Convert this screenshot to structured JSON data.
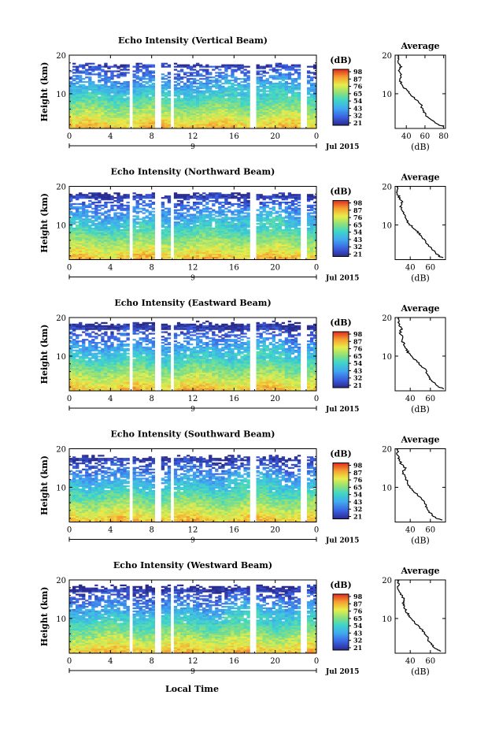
{
  "figure": {
    "xlabel_bottom": "Local Time"
  },
  "chart_data": [
    {
      "type": "heatmap",
      "title": "Echo Intensity (Vertical Beam)",
      "ylabel": "Height (km)",
      "x_ticks": [
        "0",
        "4",
        "8",
        "12",
        "16",
        "20",
        "0"
      ],
      "y_ticks": [
        "10",
        "20"
      ],
      "xlim": [
        0,
        24
      ],
      "ylim": [
        1,
        20
      ],
      "date_tick": "9",
      "date_label": "Jul 2015",
      "colorbar": {
        "unit": "(dB)",
        "ticks": [
          "98",
          "87",
          "76",
          "65",
          "54",
          "43",
          "32",
          "21"
        ]
      },
      "gaps_hours": [
        [
          5.9,
          6.3
        ],
        [
          8.4,
          9.0
        ],
        [
          9.9,
          10.3
        ],
        [
          17.6,
          18.1
        ],
        [
          22.6,
          23.0
        ]
      ],
      "signal_top_km": 17.5,
      "profile": {
        "title": "Average",
        "xlabel": "(dB)",
        "x_ticks": [
          "40",
          "60",
          "80"
        ],
        "xlim": [
          28,
          82
        ],
        "y_ticks": [
          "10",
          "20"
        ],
        "height_km": [
          1.5,
          2,
          3,
          4,
          5,
          6,
          7,
          8,
          9,
          10,
          11,
          12,
          13,
          14,
          15,
          16,
          17,
          18,
          19,
          20
        ],
        "intensity_db": [
          80,
          74,
          68,
          62,
          60,
          57,
          56,
          52,
          48,
          44,
          40,
          36,
          34,
          33,
          35,
          32,
          34,
          31,
          31,
          32
        ]
      }
    },
    {
      "type": "heatmap",
      "title": "Echo Intensity (Northward Beam)",
      "ylabel": "Height (km)",
      "x_ticks": [
        "0",
        "4",
        "8",
        "12",
        "16",
        "20",
        "0"
      ],
      "y_ticks": [
        "10",
        "20"
      ],
      "xlim": [
        0,
        24
      ],
      "ylim": [
        1,
        20
      ],
      "date_tick": "9",
      "date_label": "Jul 2015",
      "colorbar": {
        "unit": "(dB)",
        "ticks": [
          "98",
          "87",
          "76",
          "65",
          "54",
          "43",
          "32",
          "21"
        ]
      },
      "gaps_hours": [
        [
          5.9,
          6.3
        ],
        [
          8.4,
          9.0
        ],
        [
          9.9,
          10.3
        ],
        [
          17.6,
          18.1
        ],
        [
          22.6,
          23.0
        ]
      ],
      "signal_top_km": 18.0,
      "profile": {
        "title": "Average",
        "xlabel": "(dB)",
        "x_ticks": [
          "40",
          "60"
        ],
        "xlim": [
          25,
          75
        ],
        "y_ticks": [
          "10",
          "20"
        ],
        "height_km": [
          1.5,
          2,
          3,
          4,
          5,
          6,
          7,
          8,
          9,
          10,
          11,
          12,
          13,
          14,
          15,
          16,
          17,
          18,
          19,
          20
        ],
        "intensity_db": [
          72,
          68,
          64,
          60,
          57,
          54,
          52,
          48,
          44,
          40,
          37,
          35,
          33,
          31,
          30,
          32,
          29,
          28,
          27,
          28
        ]
      }
    },
    {
      "type": "heatmap",
      "title": "Echo Intensity (Eastward Beam)",
      "ylabel": "Height (km)",
      "x_ticks": [
        "0",
        "4",
        "8",
        "12",
        "16",
        "20",
        "0"
      ],
      "y_ticks": [
        "10",
        "20"
      ],
      "xlim": [
        0,
        24
      ],
      "ylim": [
        1,
        20
      ],
      "date_tick": "9",
      "date_label": "Jul 2015",
      "colorbar": {
        "unit": "(dB)",
        "ticks": [
          "98",
          "87",
          "76",
          "65",
          "54",
          "43",
          "32",
          "21"
        ]
      },
      "gaps_hours": [
        [
          5.9,
          6.3
        ],
        [
          8.4,
          9.0
        ],
        [
          9.9,
          10.3
        ],
        [
          17.6,
          18.1
        ],
        [
          22.6,
          23.0
        ]
      ],
      "signal_top_km": 18.5,
      "profile": {
        "title": "Average",
        "xlabel": "(dB)",
        "x_ticks": [
          "40",
          "60"
        ],
        "xlim": [
          25,
          75
        ],
        "y_ticks": [
          "10",
          "20"
        ],
        "height_km": [
          1.5,
          2,
          3,
          4,
          5,
          6,
          7,
          8,
          9,
          10,
          11,
          12,
          13,
          14,
          15,
          16,
          17,
          18,
          19,
          20
        ],
        "intensity_db": [
          73,
          69,
          64,
          60,
          58,
          56,
          53,
          49,
          45,
          41,
          38,
          36,
          34,
          32,
          33,
          30,
          31,
          29,
          28,
          29
        ]
      }
    },
    {
      "type": "heatmap",
      "title": "Echo Intensity (Southward Beam)",
      "ylabel": "Height (km)",
      "x_ticks": [
        "0",
        "4",
        "8",
        "12",
        "16",
        "20",
        "0"
      ],
      "y_ticks": [
        "10",
        "20"
      ],
      "xlim": [
        0,
        24
      ],
      "ylim": [
        1,
        20
      ],
      "date_tick": "9",
      "date_label": "Jul 2015",
      "colorbar": {
        "unit": "(dB)",
        "ticks": [
          "98",
          "87",
          "76",
          "65",
          "54",
          "43",
          "32",
          "21"
        ]
      },
      "gaps_hours": [
        [
          5.9,
          6.3
        ],
        [
          8.4,
          9.0
        ],
        [
          9.9,
          10.3
        ],
        [
          17.6,
          18.1
        ],
        [
          22.6,
          23.0
        ]
      ],
      "signal_top_km": 17.8,
      "profile": {
        "title": "Average",
        "xlabel": "(dB)",
        "x_ticks": [
          "40",
          "60"
        ],
        "xlim": [
          25,
          75
        ],
        "y_ticks": [
          "10",
          "20"
        ],
        "height_km": [
          1.5,
          2,
          3,
          4,
          5,
          6,
          7,
          8,
          9,
          10,
          11,
          12,
          13,
          14,
          15,
          16,
          17,
          18,
          19,
          20
        ],
        "intensity_db": [
          72,
          66,
          61,
          58,
          56,
          54,
          51,
          47,
          44,
          40,
          38,
          36,
          34,
          33,
          35,
          31,
          30,
          28,
          27,
          28
        ]
      }
    },
    {
      "type": "heatmap",
      "title": "Echo Intensity (Westward Beam)",
      "ylabel": "Height (km)",
      "x_ticks": [
        "0",
        "4",
        "8",
        "12",
        "16",
        "20",
        "0"
      ],
      "y_ticks": [
        "10",
        "20"
      ],
      "xlim": [
        0,
        24
      ],
      "ylim": [
        1,
        20
      ],
      "date_tick": "9",
      "date_label": "Jul 2015",
      "colorbar": {
        "unit": "(dB)",
        "ticks": [
          "98",
          "87",
          "76",
          "65",
          "54",
          "43",
          "32",
          "21"
        ]
      },
      "gaps_hours": [
        [
          5.9,
          6.3
        ],
        [
          8.4,
          9.0
        ],
        [
          9.9,
          10.3
        ],
        [
          17.6,
          18.1
        ],
        [
          22.6,
          23.0
        ]
      ],
      "signal_top_km": 18.2,
      "profile": {
        "title": "Average",
        "xlabel": "(dB)",
        "x_ticks": [
          "40",
          "60"
        ],
        "xlim": [
          25,
          75
        ],
        "y_ticks": [
          "10",
          "20"
        ],
        "height_km": [
          1.5,
          2,
          3,
          4,
          5,
          6,
          7,
          8,
          9,
          10,
          11,
          12,
          13,
          14,
          15,
          16,
          17,
          18,
          19,
          20
        ],
        "intensity_db": [
          71,
          67,
          62,
          59,
          57,
          54,
          52,
          48,
          44,
          40,
          38,
          36,
          34,
          33,
          34,
          31,
          30,
          28,
          28,
          29
        ]
      }
    }
  ]
}
